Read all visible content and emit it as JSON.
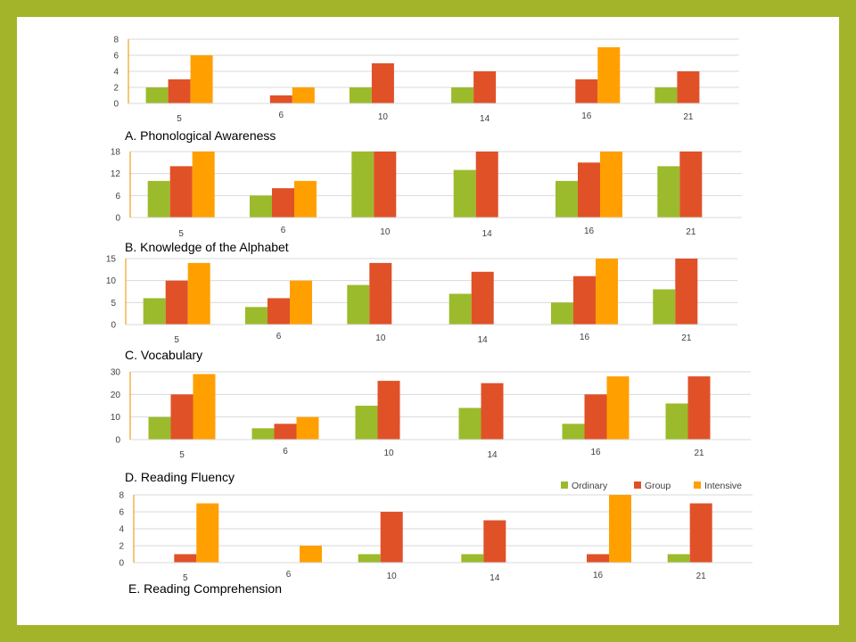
{
  "colors": {
    "frame": "#a4b42a",
    "ordinary": "#9bbb2c",
    "group": "#e05128",
    "intensive": "#ffa000",
    "axis": "#f2a01a",
    "grid": "#d9d9d9"
  },
  "legend": {
    "items": [
      {
        "key": "ordinary",
        "label": "Ordinary"
      },
      {
        "key": "group",
        "label": "Group"
      },
      {
        "key": "intensive",
        "label": "Intensive"
      }
    ]
  },
  "chart_data": [
    {
      "type": "bar",
      "title": "A.  Phonological Awareness",
      "categories": [
        "5",
        "6",
        "10",
        "14",
        "16",
        "21"
      ],
      "ylim": [
        0,
        8
      ],
      "yticks": [
        0,
        2,
        4,
        6,
        8
      ],
      "series": [
        {
          "name": "Ordinary",
          "values": [
            2,
            0,
            2,
            2,
            0,
            2
          ]
        },
        {
          "name": "Group",
          "values": [
            3,
            1,
            5,
            4,
            3,
            4
          ]
        },
        {
          "name": "Intensive",
          "values": [
            6,
            2,
            0,
            0,
            7,
            0
          ]
        }
      ]
    },
    {
      "type": "bar",
      "title": "B. Knowledge of the Alphabet",
      "categories": [
        "5",
        "6",
        "10",
        "14",
        "16",
        "21"
      ],
      "ylim": [
        0,
        18
      ],
      "yticks": [
        0,
        6,
        12,
        18
      ],
      "series": [
        {
          "name": "Ordinary",
          "values": [
            10,
            6,
            18,
            13,
            10,
            14
          ]
        },
        {
          "name": "Group",
          "values": [
            14,
            8,
            18,
            18,
            15,
            18
          ]
        },
        {
          "name": "Intensive",
          "values": [
            18,
            10,
            0,
            0,
            18,
            0
          ]
        }
      ]
    },
    {
      "type": "bar",
      "title": "C. Vocabulary",
      "categories": [
        "5",
        "6",
        "10",
        "14",
        "16",
        "21"
      ],
      "ylim": [
        0,
        15
      ],
      "yticks": [
        0,
        5,
        10,
        15
      ],
      "series": [
        {
          "name": "Ordinary",
          "values": [
            6,
            4,
            9,
            7,
            5,
            8
          ]
        },
        {
          "name": "Group",
          "values": [
            10,
            6,
            14,
            12,
            11,
            15
          ]
        },
        {
          "name": "Intensive",
          "values": [
            14,
            10,
            0,
            0,
            15,
            0
          ]
        }
      ]
    },
    {
      "type": "bar",
      "title": "D. Reading Fluency",
      "categories": [
        "5",
        "6",
        "10",
        "14",
        "16",
        "21"
      ],
      "ylim": [
        0,
        30
      ],
      "yticks": [
        0,
        10,
        20,
        30
      ],
      "series": [
        {
          "name": "Ordinary",
          "values": [
            10,
            5,
            15,
            14,
            7,
            16
          ]
        },
        {
          "name": "Group",
          "values": [
            20,
            7,
            26,
            25,
            20,
            28
          ]
        },
        {
          "name": "Intensive",
          "values": [
            29,
            10,
            0,
            0,
            28,
            0
          ]
        }
      ]
    },
    {
      "type": "bar",
      "title": "E. Reading Comprehension",
      "categories": [
        "5",
        "6",
        "10",
        "14",
        "16",
        "21"
      ],
      "ylim": [
        0,
        8
      ],
      "yticks": [
        0,
        2,
        4,
        6,
        8
      ],
      "series": [
        {
          "name": "Ordinary",
          "values": [
            0,
            0,
            1,
            1,
            0,
            1
          ]
        },
        {
          "name": "Group",
          "values": [
            1,
            0,
            6,
            5,
            1,
            7
          ]
        },
        {
          "name": "Intensive",
          "values": [
            7,
            2,
            0,
            0,
            8,
            0
          ]
        }
      ]
    }
  ]
}
